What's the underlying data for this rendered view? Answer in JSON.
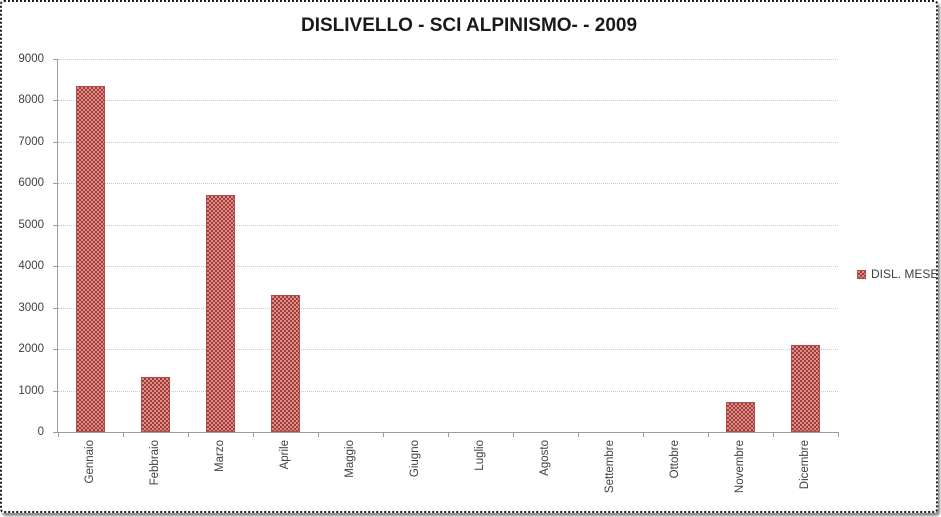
{
  "chart_data": {
    "type": "bar",
    "title": "DISLIVELLO - SCI ALPINISMO- - 2009",
    "categories": [
      "Gennaio",
      "Febbraio",
      "Marzo",
      "Aprile",
      "Maggio",
      "Giugno",
      "Luglio",
      "Agosto",
      "Settembre",
      "Ottobre",
      "Novembre",
      "Dicembre"
    ],
    "values": [
      8350,
      1320,
      5730,
      3310,
      0,
      0,
      0,
      0,
      0,
      0,
      730,
      2100
    ],
    "series_name": "DISL. MESE",
    "xlabel": "",
    "ylabel": "",
    "ylim": [
      0,
      9000
    ],
    "ytick_interval": 1000,
    "ytick_labels": [
      "0",
      "1000",
      "2000",
      "3000",
      "4000",
      "5000",
      "6000",
      "7000",
      "8000",
      "9000"
    ],
    "legend_position": "right",
    "grid": "horizontal-dotted",
    "colors": {
      "bar": "#C0504D",
      "bar_pattern_dark": "#9E3F3C",
      "bar_pattern_light": "#DD8D86",
      "gridline": "#C9C9C9",
      "axis": "#9D9D9D",
      "label_text": "#3F3F3F",
      "title_text": "#1A1A1A"
    }
  }
}
